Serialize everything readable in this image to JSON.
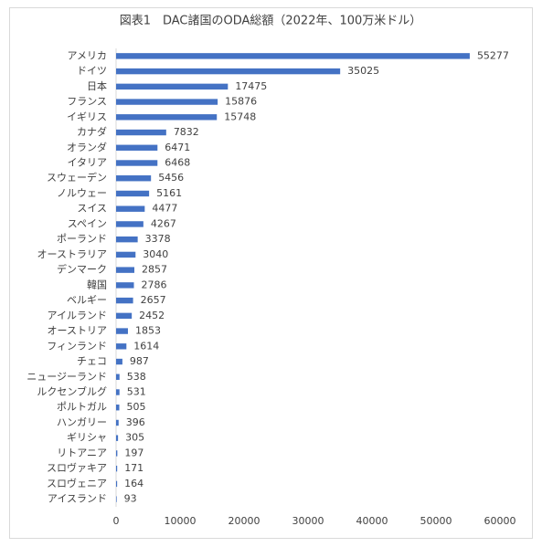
{
  "chart_data": {
    "type": "barh",
    "title": "図表1　DAC諸国のODA総額（2022年、100万米ドル）",
    "categories": [
      "アメリカ",
      "ドイツ",
      "日本",
      "フランス",
      "イギリス",
      "カナダ",
      "オランダ",
      "イタリア",
      "スウェーデン",
      "ノルウェー",
      "スイス",
      "スペイン",
      "ポーランド",
      "オーストラリア",
      "デンマーク",
      "韓国",
      "ベルギー",
      "アイルランド",
      "オーストリア",
      "フィンランド",
      "チェコ",
      "ニュージーランド",
      "ルクセンブルグ",
      "ポルトガル",
      "ハンガリー",
      "ギリシャ",
      "リトアニア",
      "スロヴァキア",
      "スロヴェニア",
      "アイスランド"
    ],
    "values": [
      55277,
      35025,
      17475,
      15876,
      15748,
      7832,
      6471,
      6468,
      5456,
      5161,
      4477,
      4267,
      3378,
      3040,
      2857,
      2786,
      2657,
      2452,
      1853,
      1614,
      987,
      538,
      531,
      505,
      396,
      305,
      197,
      171,
      164,
      93
    ],
    "color": "#4472c4",
    "xlim": [
      0,
      60000
    ],
    "xticks": [
      0,
      10000,
      20000,
      30000,
      40000,
      50000,
      60000
    ],
    "grid": false
  }
}
